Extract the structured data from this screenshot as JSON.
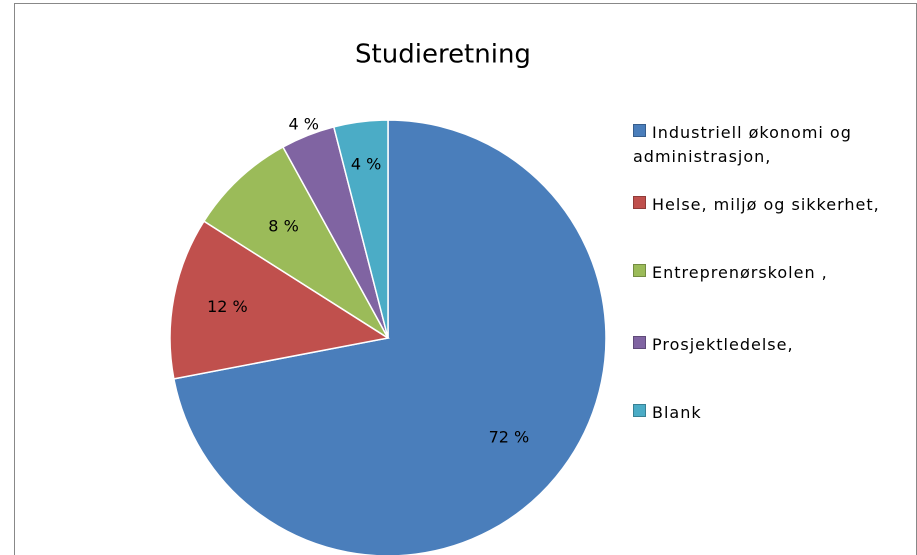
{
  "chart_data": {
    "type": "pie",
    "title": "Studieretning",
    "categories": [
      "Industriell økonomi og administrasjon,",
      "Helse, miljø og sikkerhet,",
      "Entreprenørskolen ,",
      "Prosjektledelse,",
      "Blank"
    ],
    "values": [
      72,
      12,
      8,
      4,
      4
    ],
    "value_labels": [
      "72 %",
      "12 %",
      "8 %",
      "4 %",
      "4 %"
    ],
    "colors": [
      "#4a7ebb",
      "#c0504d",
      "#9bbb59",
      "#8064a2",
      "#4bacc6"
    ],
    "legend": "right"
  }
}
